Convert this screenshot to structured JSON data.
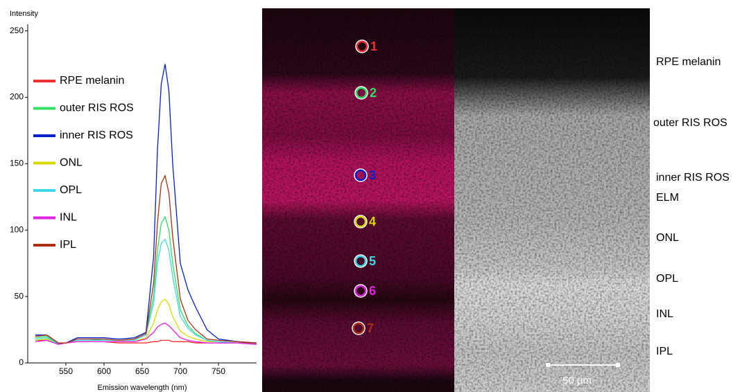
{
  "chart_data": {
    "type": "line",
    "y_label": "Intensity",
    "x_label": "Emission wavelength (nm)",
    "xlim": [
      500,
      800
    ],
    "ylim": [
      0,
      255
    ],
    "xticks": [
      550,
      600,
      650,
      700,
      750
    ],
    "yticks": [
      0,
      50,
      100,
      150,
      200,
      250
    ],
    "grid": false,
    "legend": "left",
    "x": [
      510,
      525,
      540,
      550,
      565,
      580,
      600,
      620,
      640,
      655,
      665,
      670,
      675,
      680,
      685,
      690,
      700,
      710,
      720,
      735,
      750,
      775,
      800
    ],
    "series": [
      {
        "name": "RPE melanin",
        "color": "#f03030",
        "values": [
          17,
          17,
          15,
          15,
          16,
          16,
          16,
          15,
          15,
          15,
          16,
          16,
          17,
          17,
          17,
          16,
          16,
          16,
          15,
          15,
          15,
          15,
          15
        ]
      },
      {
        "name": "outer RIS ROS",
        "color": "#30e060",
        "values": [
          19,
          20,
          14,
          15,
          17,
          17,
          18,
          17,
          18,
          22,
          50,
          85,
          105,
          110,
          100,
          75,
          40,
          28,
          22,
          17,
          16,
          15,
          14
        ]
      },
      {
        "name": "inner RIS ROS",
        "color": "#0020d0",
        "values": [
          21,
          21,
          15,
          15,
          19,
          19,
          19,
          18,
          19,
          23,
          80,
          160,
          210,
          225,
          205,
          150,
          75,
          55,
          42,
          25,
          18,
          16,
          15
        ]
      },
      {
        "name": "ONL",
        "color": "#d8d800",
        "values": [
          17,
          18,
          14,
          15,
          16,
          16,
          16,
          16,
          16,
          19,
          30,
          40,
          46,
          48,
          44,
          35,
          24,
          20,
          18,
          16,
          16,
          15,
          14
        ]
      },
      {
        "name": "OPL",
        "color": "#40d8e8",
        "values": [
          18,
          19,
          14,
          15,
          17,
          17,
          17,
          17,
          17,
          21,
          45,
          75,
          90,
          93,
          85,
          65,
          35,
          26,
          21,
          17,
          16,
          15,
          14
        ]
      },
      {
        "name": "INL",
        "color": "#e020e0",
        "values": [
          16,
          17,
          14,
          15,
          16,
          16,
          16,
          16,
          16,
          18,
          23,
          27,
          29,
          30,
          28,
          25,
          19,
          17,
          16,
          15,
          15,
          15,
          14
        ]
      },
      {
        "name": "IPL",
        "color": "#a83010",
        "values": [
          20,
          21,
          15,
          15,
          18,
          18,
          18,
          17,
          18,
          22,
          60,
          105,
          135,
          141,
          128,
          95,
          48,
          32,
          25,
          18,
          17,
          16,
          15
        ]
      }
    ]
  },
  "image_markers": [
    "1",
    "2",
    "3",
    "4",
    "5",
    "6",
    "7"
  ],
  "layer_labels": [
    "RPE melanin",
    "outer RIS ROS",
    "inner RIS ROS",
    "ELM",
    "ONL",
    "OPL",
    "INL",
    "IPL"
  ],
  "scale_bar": "50 µm"
}
